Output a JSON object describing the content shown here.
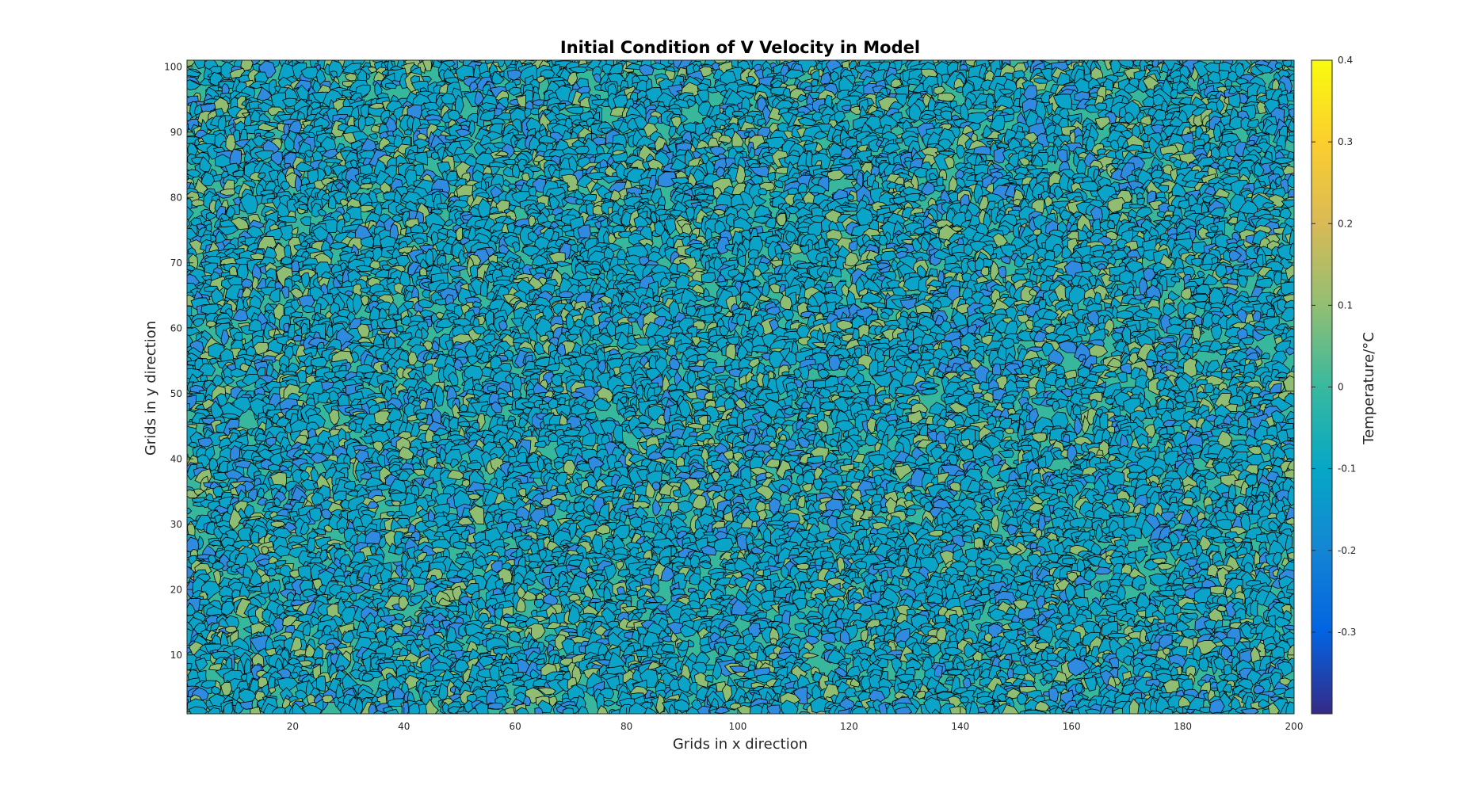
{
  "chart_data": {
    "type": "heatmap",
    "subtype": "filled-contour",
    "title": "Initial Condition of V Velocity in Model",
    "xlabel": "Grids in x direction",
    "ylabel": "Grids in y direction",
    "xlim": [
      1,
      200
    ],
    "ylim": [
      1,
      101
    ],
    "x_ticks": [
      20,
      40,
      60,
      80,
      100,
      120,
      140,
      160,
      180,
      200
    ],
    "y_ticks": [
      10,
      20,
      30,
      40,
      50,
      60,
      70,
      80,
      90,
      100
    ],
    "colorbar": {
      "label": "Temperature/°C",
      "clim": [
        -0.4,
        0.4
      ],
      "ticks": [
        -0.3,
        -0.2,
        -0.1,
        0,
        0.1,
        0.2,
        0.3,
        0.4
      ],
      "tick_labels": [
        "-0.3",
        "-0.2",
        "-0.1",
        "0",
        "0.1",
        "0.2",
        "0.3",
        "0.4"
      ],
      "colormap": "parula",
      "colormap_stops": [
        "#352a87",
        "#0363e1",
        "#1485d4",
        "#06a7c6",
        "#38b99e",
        "#92bf73",
        "#d9ba56",
        "#fcce2e",
        "#f9fb0e"
      ]
    },
    "field": "random noise with contour levels at -0.1 and 0",
    "contour_levels": [
      -0.3,
      -0.2,
      -0.1,
      0,
      0.1,
      0.2,
      0.3
    ],
    "contour_line_color": "#000000"
  }
}
